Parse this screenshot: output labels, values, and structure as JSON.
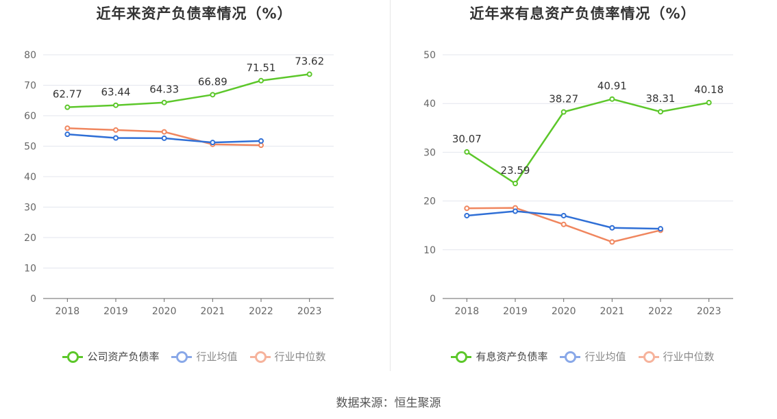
{
  "source": "数据来源：恒生聚源",
  "colors": {
    "company": "#5cc72a",
    "avg": "#2f6fd6",
    "median": "#f0865e",
    "avg_legend": "#89a8e8",
    "median_legend": "#f6b39c"
  },
  "chart_data": [
    {
      "type": "line",
      "title": "近年来资产负债率情况（%）",
      "x": [
        "2018",
        "2019",
        "2020",
        "2021",
        "2022",
        "2023"
      ],
      "ylim": [
        0,
        80
      ],
      "yticks": [
        "0",
        "10",
        "20",
        "30",
        "40",
        "50",
        "60",
        "70",
        "80"
      ],
      "grid": true,
      "legend_position": "bottom",
      "series": [
        {
          "name": "公司资产负债率",
          "values": [
            62.77,
            63.44,
            64.33,
            66.89,
            71.51,
            73.62
          ],
          "labels": [
            "62.77",
            "63.44",
            "64.33",
            "66.89",
            "71.51",
            "73.62"
          ]
        },
        {
          "name": "行业均值",
          "values": [
            53.9,
            52.7,
            52.6,
            51.2,
            51.7,
            null
          ]
        },
        {
          "name": "行业中位数",
          "values": [
            55.9,
            55.3,
            54.7,
            50.6,
            50.3,
            null
          ]
        }
      ]
    },
    {
      "type": "line",
      "title": "近年来有息资产负债率情况（%）",
      "x": [
        "2018",
        "2019",
        "2020",
        "2021",
        "2022",
        "2023"
      ],
      "ylim": [
        0,
        50
      ],
      "yticks": [
        "0",
        "10",
        "20",
        "30",
        "40",
        "50"
      ],
      "grid": true,
      "legend_position": "bottom",
      "series": [
        {
          "name": "有息资产负债率",
          "values": [
            30.07,
            23.59,
            38.27,
            40.91,
            38.31,
            40.18
          ],
          "labels": [
            "30.07",
            "23.59",
            "38.27",
            "40.91",
            "38.31",
            "40.18"
          ]
        },
        {
          "name": "行业均值",
          "values": [
            17.0,
            17.9,
            17.0,
            14.5,
            14.3,
            null
          ]
        },
        {
          "name": "行业中位数",
          "values": [
            18.5,
            18.6,
            15.2,
            11.6,
            14.0,
            null
          ]
        }
      ]
    }
  ]
}
